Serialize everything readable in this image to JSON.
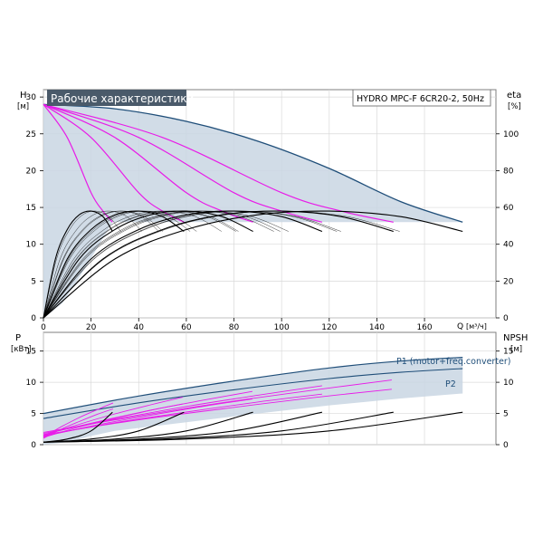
{
  "colors": {
    "band_fill": "#c9d6e3",
    "envelope": "#1f4e79",
    "magenta": "#e81ce8",
    "black": "#000000",
    "frame": "#7f7f7f",
    "title_bg": "#4a5a6a",
    "title_fg": "#ffffff"
  },
  "chart_data": [
    {
      "type": "line",
      "title": "Рабочие характеристики",
      "subtitle": "HYDRO MPC-F 6CR20-2, 50Hz",
      "ylabel": "H",
      "yunit": "[м]",
      "y2label": "eta",
      "y2unit": "[%]",
      "xlabel": "Q",
      "xunit": "[м³/ч]",
      "xlim": [
        0,
        190
      ],
      "ylim": [
        0,
        31
      ],
      "y2lim": [
        0,
        124
      ],
      "xticks": [
        "0",
        "20",
        "40",
        "60",
        "80",
        "100",
        "120",
        "140",
        "160"
      ],
      "yticks": [
        "0",
        "5",
        "10",
        "15",
        "20",
        "25",
        "30"
      ],
      "y2ticks": [
        "0",
        "20",
        "40",
        "60",
        "80",
        "100"
      ],
      "grid": true,
      "series": [
        {
          "group": "head_envelope",
          "x": [
            0,
            30,
            60,
            90,
            120,
            150,
            176
          ],
          "y": [
            29.0,
            28.4,
            26.7,
            24.0,
            20.3,
            15.8,
            13.0
          ]
        },
        {
          "group": "head_1pump",
          "x": [
            0,
            10,
            20,
            25,
            29
          ],
          "y": [
            29.0,
            24.5,
            17.0,
            14.5,
            13.0
          ]
        },
        {
          "group": "head_2pumps",
          "x": [
            0,
            20,
            40,
            50,
            59
          ],
          "y": [
            29.0,
            24.5,
            17.0,
            14.5,
            13.0
          ]
        },
        {
          "group": "head_3pumps",
          "x": [
            0,
            30,
            60,
            75,
            88
          ],
          "y": [
            29.0,
            24.5,
            17.0,
            14.5,
            13.0
          ]
        },
        {
          "group": "head_4pumps",
          "x": [
            0,
            40,
            80,
            100,
            117
          ],
          "y": [
            29.0,
            24.5,
            17.0,
            14.5,
            13.0
          ]
        },
        {
          "group": "head_5pumps",
          "x": [
            0,
            50,
            100,
            125,
            147
          ],
          "y": [
            29.0,
            24.5,
            17.0,
            14.5,
            13.0
          ]
        },
        {
          "group": "eta_1pump",
          "x": [
            0,
            5,
            10,
            15,
            20,
            25,
            29
          ],
          "y": [
            0,
            32,
            48,
            56,
            58,
            55,
            47
          ]
        },
        {
          "group": "eta_2pumps",
          "x": [
            0,
            10,
            20,
            30,
            40,
            50,
            59
          ],
          "y": [
            0,
            32,
            48,
            56,
            58,
            55,
            47
          ]
        },
        {
          "group": "eta_3pumps",
          "x": [
            0,
            15,
            30,
            45,
            60,
            75,
            88
          ],
          "y": [
            0,
            32,
            48,
            56,
            58,
            55,
            47
          ]
        },
        {
          "group": "eta_4pumps",
          "x": [
            0,
            20,
            40,
            60,
            80,
            100,
            117
          ],
          "y": [
            0,
            32,
            48,
            56,
            58,
            55,
            47
          ]
        },
        {
          "group": "eta_5pumps",
          "x": [
            0,
            25,
            50,
            75,
            100,
            125,
            147
          ],
          "y": [
            0,
            32,
            48,
            56,
            58,
            55,
            47
          ]
        },
        {
          "group": "eta_6pumps",
          "x": [
            0,
            30,
            60,
            90,
            120,
            150,
            176
          ],
          "y": [
            0,
            32,
            48,
            56,
            58,
            55,
            47
          ]
        }
      ]
    },
    {
      "type": "line",
      "ylabel": "P",
      "yunit": "[кВт]",
      "y2label": "NPSH",
      "y2unit": "[м]",
      "xlim": [
        0,
        190
      ],
      "ylim": [
        0,
        18
      ],
      "y2lim": [
        0,
        18
      ],
      "yticks": [
        "0",
        "5",
        "10",
        "15"
      ],
      "y2ticks": [
        "0",
        "5",
        "10",
        "15"
      ],
      "grid": true,
      "annotations": [
        "P1 (motor+freq.converter)",
        "P2"
      ],
      "series": [
        {
          "name": "P1 (motor+freq.converter)",
          "group": "p1_envelope",
          "x": [
            0,
            40,
            80,
            120,
            150,
            176
          ],
          "y": [
            5.0,
            7.8,
            10.2,
            12.3,
            13.4,
            14.0
          ]
        },
        {
          "name": "P2",
          "group": "p2_envelope",
          "x": [
            0,
            40,
            80,
            120,
            150,
            176
          ],
          "y": [
            4.2,
            6.7,
            8.8,
            10.6,
            11.6,
            12.2
          ]
        },
        {
          "group": "p1_partial",
          "x": [
            0,
            30,
            60,
            90,
            117
          ],
          "y": [
            2.0,
            4.5,
            6.8,
            8.8,
            10.5
          ]
        },
        {
          "group": "p2_partial",
          "x": [
            0,
            30,
            60,
            90,
            117
          ],
          "y": [
            1.6,
            3.9,
            5.8,
            7.6,
            9.0
          ]
        },
        {
          "group": "npsh_1pump",
          "x": [
            0,
            10,
            20,
            29
          ],
          "y": [
            0.4,
            0.9,
            2.2,
            5.2
          ]
        },
        {
          "group": "npsh_2pumps",
          "x": [
            0,
            20,
            40,
            59
          ],
          "y": [
            0.4,
            0.9,
            2.2,
            5.2
          ]
        },
        {
          "group": "npsh_3pumps",
          "x": [
            0,
            30,
            60,
            88
          ],
          "y": [
            0.4,
            0.9,
            2.2,
            5.2
          ]
        },
        {
          "group": "npsh_4pumps",
          "x": [
            0,
            40,
            80,
            117
          ],
          "y": [
            0.4,
            0.9,
            2.2,
            5.2
          ]
        },
        {
          "group": "npsh_5pumps",
          "x": [
            0,
            50,
            100,
            147
          ],
          "y": [
            0.4,
            0.9,
            2.2,
            5.2
          ]
        },
        {
          "group": "npsh_6pumps",
          "x": [
            0,
            60,
            120,
            176
          ],
          "y": [
            0.4,
            0.9,
            2.2,
            5.2
          ]
        }
      ]
    }
  ]
}
